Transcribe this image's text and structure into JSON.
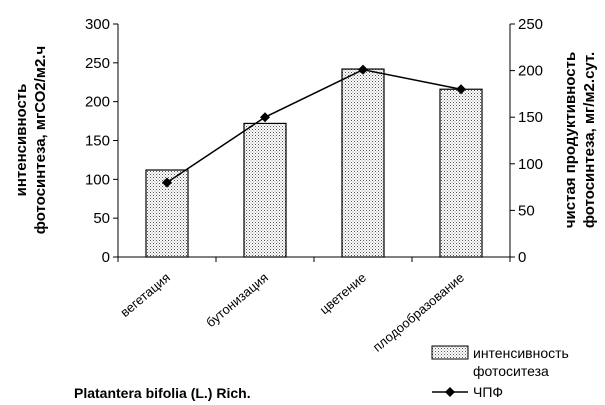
{
  "chart_data": {
    "type": "bar+line",
    "categories": [
      "вегетация",
      "бутонизация",
      "цветение",
      "плодообразование"
    ],
    "series": [
      {
        "name": "интенсивность фотоситеза",
        "type": "bar",
        "axis": "left",
        "values": [
          112,
          172,
          242,
          216
        ]
      },
      {
        "name": "ЧПФ",
        "type": "line",
        "axis": "right",
        "values": [
          80,
          150,
          201,
          180
        ]
      }
    ],
    "ylabel_left": [
      "интенсивность",
      "фотосинтеза, мгСО2/м2.ч"
    ],
    "ylabel_right": [
      "чистая продуктивность",
      "фотосинтеза, мг/м2.сут."
    ],
    "ylim_left": [
      0,
      300
    ],
    "ylim_right": [
      0,
      250
    ],
    "yticks_left": [
      0,
      50,
      100,
      150,
      200,
      250,
      300
    ],
    "yticks_right": [
      0,
      50,
      100,
      150,
      200,
      250
    ],
    "legend": {
      "placement": "bottom-right"
    },
    "grid": false,
    "caption": "Platantera bifolia (L.) Rich.",
    "colors": {
      "bar_fill": "#d9d9d9",
      "bar_stroke": "#000000",
      "line": "#000000"
    }
  }
}
